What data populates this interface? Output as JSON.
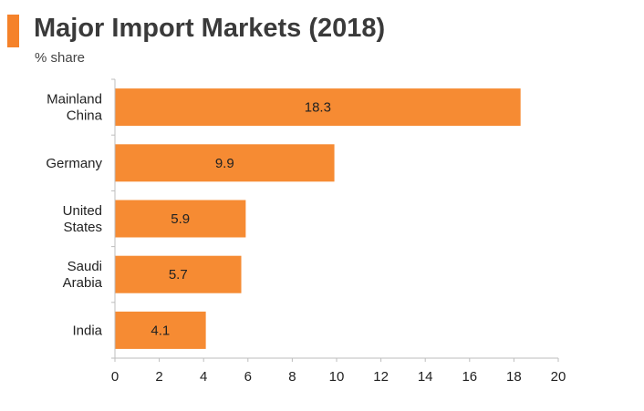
{
  "title": "Major Import Markets (2018)",
  "subtitle": "% share",
  "colors": {
    "accent": "#f5822a",
    "bar": "#f68b33",
    "axis": "#bdbdbd"
  },
  "chart_data": {
    "type": "bar",
    "orientation": "horizontal",
    "title": "Major Import Markets (2018)",
    "subtitle": "% share",
    "categories": [
      [
        "Mainland",
        "China"
      ],
      [
        "Germany"
      ],
      [
        "United",
        "States"
      ],
      [
        "Saudi",
        "Arabia"
      ],
      [
        "India"
      ]
    ],
    "values": [
      18.3,
      9.9,
      5.9,
      5.7,
      4.1
    ],
    "value_labels": [
      "18.3",
      "9.9",
      "5.9",
      "5.7",
      "4.1"
    ],
    "xlim": [
      0,
      20
    ],
    "xticks": [
      0,
      2,
      4,
      6,
      8,
      10,
      12,
      14,
      16,
      18,
      20
    ],
    "grid": false,
    "legend": "none"
  }
}
